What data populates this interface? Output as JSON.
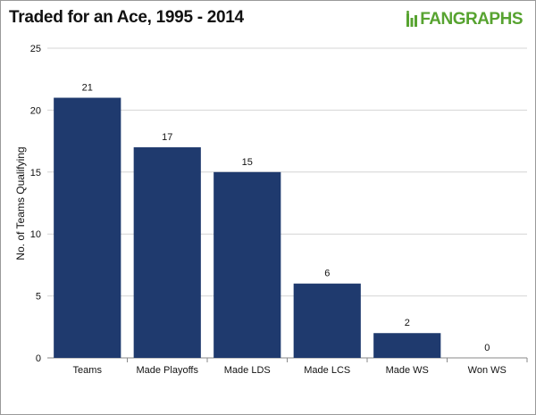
{
  "logo": {
    "text": "FANGRAPHS"
  },
  "colors": {
    "bar": "#1f3a6e",
    "grid": "#d4d4d4",
    "logo": "#57a330"
  },
  "chart_data": {
    "type": "bar",
    "title": "Traded for an Ace, 1995 - 2014",
    "xlabel": "",
    "ylabel": "No. of Teams Qualifying",
    "categories": [
      "Teams",
      "Made Playoffs",
      "Made LDS",
      "Made LCS",
      "Made WS",
      "Won WS"
    ],
    "values": [
      21,
      17,
      15,
      6,
      2,
      0
    ],
    "ylim": [
      0,
      25
    ],
    "yticks": [
      0,
      5,
      10,
      15,
      20,
      25
    ],
    "grid": true,
    "data_labels": true,
    "legend": "none"
  }
}
